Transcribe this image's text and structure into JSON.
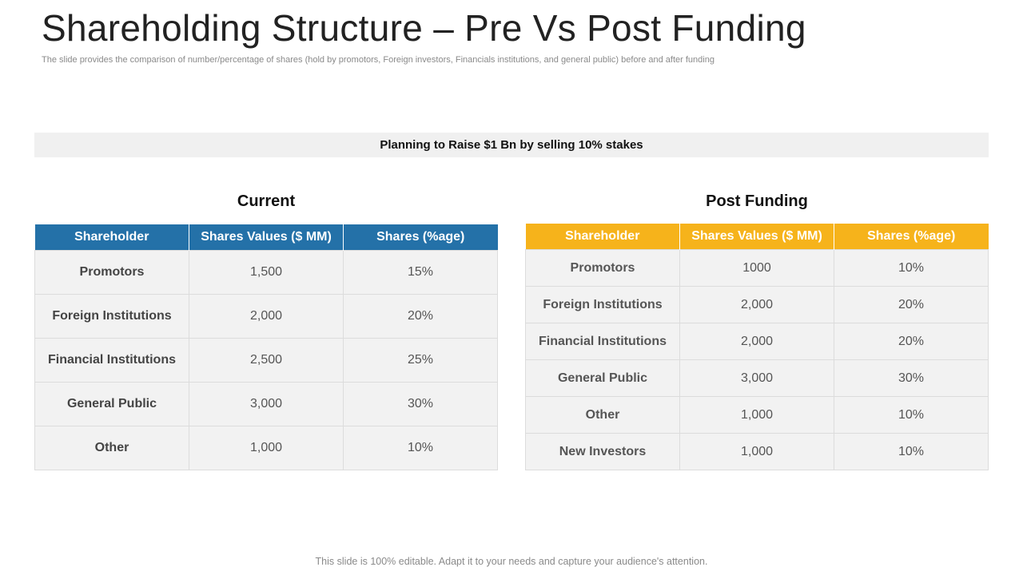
{
  "title": "Shareholding Structure – Pre Vs Post Funding",
  "subtitle": "The slide provides the comparison of number/percentage of shares (hold by promotors, Foreign investors, Financials institutions, and general public) before and after funding",
  "banner": "Planning to Raise $1 Bn by selling 10% stakes",
  "current": {
    "heading": "Current",
    "header_color": "#2471a8",
    "columns": [
      "Shareholder",
      "Shares Values ($ MM)",
      "Shares (%age)"
    ],
    "rows": [
      [
        "Promotors",
        "1,500",
        "15%"
      ],
      [
        "Foreign Institutions",
        "2,000",
        "20%"
      ],
      [
        "Financial Institutions",
        "2,500",
        "25%"
      ],
      [
        "General Public",
        "3,000",
        "30%"
      ],
      [
        "Other",
        "1,000",
        "10%"
      ]
    ]
  },
  "post": {
    "heading": "Post Funding",
    "header_color": "#f6b31b",
    "columns": [
      "Shareholder",
      "Shares Values ($ MM)",
      "Shares (%age)"
    ],
    "rows": [
      [
        "Promotors",
        "1000",
        "10%"
      ],
      [
        "Foreign Institutions",
        "2,000",
        "20%"
      ],
      [
        "Financial Institutions",
        "2,000",
        "20%"
      ],
      [
        "General Public",
        "3,000",
        "30%"
      ],
      [
        "Other",
        "1,000",
        "10%"
      ],
      [
        "New Investors",
        "1,000",
        "10%"
      ]
    ]
  },
  "footer": "This slide is 100% editable. Adapt it to your needs and capture your audience's attention."
}
